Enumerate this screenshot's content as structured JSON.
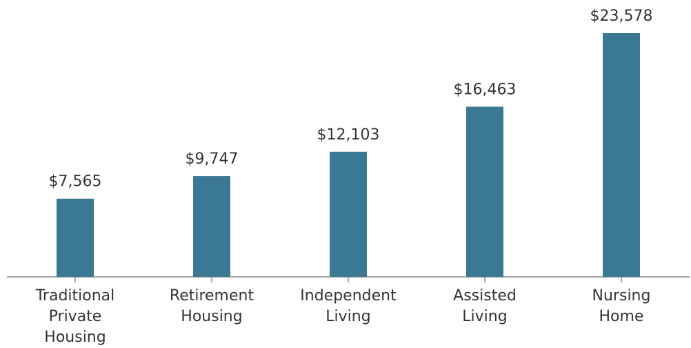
{
  "chart_data": {
    "type": "bar",
    "categories": [
      "Traditional\nPrivate\nHousing",
      "Retirement\nHousing",
      "Independent\nLiving",
      "Assisted\nLiving",
      "Nursing\nHome"
    ],
    "values": [
      7565,
      9747,
      12103,
      16463,
      23578
    ],
    "value_labels": [
      "$7,565",
      "$9,747",
      "$12,103",
      "$16,463",
      "$23,578"
    ],
    "color": "#3a7893"
  }
}
